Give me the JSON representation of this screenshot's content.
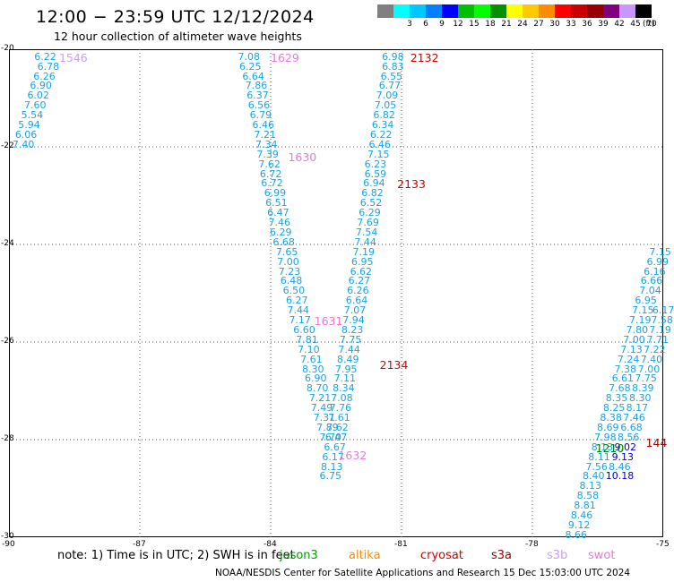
{
  "title": "12:00 − 23:59 UTC 12/12/2024",
  "subtitle": "12 hour collection of altimeter wave heights",
  "scale": {
    "unit": "(ft)",
    "levels": [
      {
        "label": "",
        "color": "#808080"
      },
      {
        "label": "3",
        "color": "#00ffff"
      },
      {
        "label": "6",
        "color": "#00c8ff"
      },
      {
        "label": "9",
        "color": "#0080ff"
      },
      {
        "label": "12",
        "color": "#0000ff"
      },
      {
        "label": "15",
        "color": "#00c000"
      },
      {
        "label": "18",
        "color": "#00ff00"
      },
      {
        "label": "21",
        "color": "#009000"
      },
      {
        "label": "24",
        "color": "#ffff00"
      },
      {
        "label": "27",
        "color": "#ffc800"
      },
      {
        "label": "30",
        "color": "#ff8c00"
      },
      {
        "label": "33",
        "color": "#ff0000"
      },
      {
        "label": "36",
        "color": "#c80000"
      },
      {
        "label": "39",
        "color": "#960000"
      },
      {
        "label": "42",
        "color": "#800080"
      },
      {
        "label": "45",
        "color": "#c896ff"
      },
      {
        "label": "70",
        "color": "#000000"
      }
    ]
  },
  "map": {
    "lon_ticks": [
      "-90",
      "-87",
      "-84",
      "-81",
      "-78",
      "-75"
    ],
    "lat_ticks": [
      "-20",
      "-22",
      "-24",
      "-26",
      "-28",
      "-30"
    ],
    "lon_range": [
      -90,
      -75
    ],
    "lat_range": [
      -30,
      -20
    ]
  },
  "tracks": [
    {
      "color": "#1aa3e0",
      "points": [
        {
          "lon": -89.42,
          "lat": -20.05,
          "v": "6.22"
        },
        {
          "lon": -89.35,
          "lat": -20.25,
          "v": "6.78"
        },
        {
          "lon": -89.44,
          "lat": -20.45,
          "v": "6.26"
        },
        {
          "lon": -89.52,
          "lat": -20.65,
          "v": "6.90"
        },
        {
          "lon": -89.58,
          "lat": -20.85,
          "v": "6.02"
        },
        {
          "lon": -89.65,
          "lat": -21.05,
          "v": "7.60"
        },
        {
          "lon": -89.72,
          "lat": -21.25,
          "v": "5.54"
        },
        {
          "lon": -89.79,
          "lat": -21.45,
          "v": "5.94"
        },
        {
          "lon": -89.86,
          "lat": -21.65,
          "v": "6.06"
        },
        {
          "lon": -89.92,
          "lat": -21.85,
          "v": "7.40"
        }
      ]
    },
    {
      "color": "#1aa3e0",
      "points": [
        {
          "lon": -84.75,
          "lat": -20.05,
          "v": "7.08"
        },
        {
          "lon": -84.72,
          "lat": -20.25,
          "v": "6.25"
        },
        {
          "lon": -84.65,
          "lat": -20.45,
          "v": "6.64"
        },
        {
          "lon": -84.58,
          "lat": -20.65,
          "v": "7.86"
        },
        {
          "lon": -84.55,
          "lat": -20.85,
          "v": "6.37"
        },
        {
          "lon": -84.52,
          "lat": -21.05,
          "v": "6.56"
        },
        {
          "lon": -84.48,
          "lat": -21.25,
          "v": "6.79"
        },
        {
          "lon": -84.42,
          "lat": -21.45,
          "v": "6.46"
        },
        {
          "lon": -84.38,
          "lat": -21.65,
          "v": "7.21"
        },
        {
          "lon": -84.35,
          "lat": -21.85,
          "v": "7.34"
        },
        {
          "lon": -84.32,
          "lat": -22.05,
          "v": "7.39"
        },
        {
          "lon": -84.28,
          "lat": -22.25,
          "v": "7.62"
        },
        {
          "lon": -84.25,
          "lat": -22.45,
          "v": "6.72"
        },
        {
          "lon": -84.22,
          "lat": -22.65,
          "v": "6.72"
        },
        {
          "lon": -84.15,
          "lat": -22.85,
          "v": "6.99"
        },
        {
          "lon": -84.12,
          "lat": -23.05,
          "v": "6.51"
        },
        {
          "lon": -84.08,
          "lat": -23.25,
          "v": "6.47"
        },
        {
          "lon": -84.05,
          "lat": -23.45,
          "v": "7.46"
        },
        {
          "lon": -84.02,
          "lat": -23.65,
          "v": "6.29"
        },
        {
          "lon": -83.95,
          "lat": -23.85,
          "v": "6.68"
        },
        {
          "lon": -83.88,
          "lat": -24.05,
          "v": "7.65"
        },
        {
          "lon": -83.85,
          "lat": -24.25,
          "v": "7.00"
        },
        {
          "lon": -83.82,
          "lat": -24.45,
          "v": "7.23"
        },
        {
          "lon": -83.78,
          "lat": -24.65,
          "v": "6.48"
        },
        {
          "lon": -83.72,
          "lat": -24.85,
          "v": "6.50"
        },
        {
          "lon": -83.65,
          "lat": -25.05,
          "v": "6.27"
        },
        {
          "lon": -83.62,
          "lat": -25.25,
          "v": "7.44"
        },
        {
          "lon": -83.58,
          "lat": -25.45,
          "v": "7.17"
        },
        {
          "lon": -83.48,
          "lat": -25.65,
          "v": "6.60"
        },
        {
          "lon": -83.42,
          "lat": -25.85,
          "v": "7.81"
        },
        {
          "lon": -83.38,
          "lat": -26.05,
          "v": "7.10"
        },
        {
          "lon": -83.32,
          "lat": -26.25,
          "v": "7.61"
        },
        {
          "lon": -83.28,
          "lat": -26.45,
          "v": "8.30"
        },
        {
          "lon": -83.22,
          "lat": -26.65,
          "v": "6.90"
        },
        {
          "lon": -83.18,
          "lat": -26.85,
          "v": "8.70"
        },
        {
          "lon": -83.12,
          "lat": -27.05,
          "v": "7.21"
        },
        {
          "lon": -83.08,
          "lat": -27.25,
          "v": "7.49"
        },
        {
          "lon": -83.02,
          "lat": -27.45,
          "v": "7.31"
        },
        {
          "lon": -82.95,
          "lat": -27.65,
          "v": "7.89"
        },
        {
          "lon": -82.88,
          "lat": -27.85,
          "v": "7.70"
        }
      ]
    },
    {
      "color": "#1aa3e0",
      "points": [
        {
          "lon": -81.45,
          "lat": -20.05,
          "v": "6.98"
        },
        {
          "lon": -81.45,
          "lat": -20.25,
          "v": "6.83"
        },
        {
          "lon": -81.48,
          "lat": -20.45,
          "v": "6.55"
        },
        {
          "lon": -81.52,
          "lat": -20.65,
          "v": "6.77"
        },
        {
          "lon": -81.58,
          "lat": -20.85,
          "v": "7.09"
        },
        {
          "lon": -81.62,
          "lat": -21.05,
          "v": "7.05"
        },
        {
          "lon": -81.65,
          "lat": -21.25,
          "v": "6.82"
        },
        {
          "lon": -81.68,
          "lat": -21.45,
          "v": "6.34"
        },
        {
          "lon": -81.72,
          "lat": -21.65,
          "v": "6.22"
        },
        {
          "lon": -81.75,
          "lat": -21.85,
          "v": "6.46"
        },
        {
          "lon": -81.78,
          "lat": -22.05,
          "v": "7.15"
        },
        {
          "lon": -81.85,
          "lat": -22.25,
          "v": "6.23"
        },
        {
          "lon": -81.85,
          "lat": -22.45,
          "v": "6.59"
        },
        {
          "lon": -81.88,
          "lat": -22.65,
          "v": "6.94"
        },
        {
          "lon": -81.92,
          "lat": -22.85,
          "v": "6.82"
        },
        {
          "lon": -81.95,
          "lat": -23.05,
          "v": "6.52"
        },
        {
          "lon": -81.98,
          "lat": -23.25,
          "v": "6.29"
        },
        {
          "lon": -82.02,
          "lat": -23.45,
          "v": "7.69"
        },
        {
          "lon": -82.05,
          "lat": -23.65,
          "v": "7.54"
        },
        {
          "lon": -82.08,
          "lat": -23.85,
          "v": "7.44"
        },
        {
          "lon": -82.12,
          "lat": -24.05,
          "v": "7.19"
        },
        {
          "lon": -82.15,
          "lat": -24.25,
          "v": "6.95"
        },
        {
          "lon": -82.18,
          "lat": -24.45,
          "v": "6.62"
        },
        {
          "lon": -82.22,
          "lat": -24.65,
          "v": "6.27"
        },
        {
          "lon": -82.25,
          "lat": -24.85,
          "v": "6.26"
        },
        {
          "lon": -82.28,
          "lat": -25.05,
          "v": "6.64"
        },
        {
          "lon": -82.32,
          "lat": -25.25,
          "v": "7.07"
        },
        {
          "lon": -82.35,
          "lat": -25.45,
          "v": "7.94"
        },
        {
          "lon": -82.38,
          "lat": -25.65,
          "v": "8.23"
        },
        {
          "lon": -82.42,
          "lat": -25.85,
          "v": "7.75"
        },
        {
          "lon": -82.45,
          "lat": -26.05,
          "v": "7.44"
        },
        {
          "lon": -82.48,
          "lat": -26.25,
          "v": "8.49"
        },
        {
          "lon": -82.52,
          "lat": -26.45,
          "v": "7.95"
        },
        {
          "lon": -82.55,
          "lat": -26.65,
          "v": "7.11"
        },
        {
          "lon": -82.58,
          "lat": -26.85,
          "v": "8.34"
        },
        {
          "lon": -82.62,
          "lat": -27.05,
          "v": "7.08"
        },
        {
          "lon": -82.65,
          "lat": -27.25,
          "v": "7.76"
        },
        {
          "lon": -82.68,
          "lat": -27.45,
          "v": "7.61"
        },
        {
          "lon": -82.72,
          "lat": -27.65,
          "v": "7.62"
        },
        {
          "lon": -82.75,
          "lat": -27.85,
          "v": "6.47"
        },
        {
          "lon": -82.78,
          "lat": -28.05,
          "v": "6.67"
        },
        {
          "lon": -82.82,
          "lat": -28.25,
          "v": "6.17"
        },
        {
          "lon": -82.85,
          "lat": -28.45,
          "v": "8.13"
        },
        {
          "lon": -82.88,
          "lat": -28.65,
          "v": "6.75"
        }
      ]
    },
    {
      "color": "#1aa3e0",
      "points": [
        {
          "lon": -75.32,
          "lat": -24.05,
          "v": "7.15"
        },
        {
          "lon": -75.38,
          "lat": -24.25,
          "v": "6.99"
        },
        {
          "lon": -75.45,
          "lat": -24.45,
          "v": "6.16"
        },
        {
          "lon": -75.52,
          "lat": -24.65,
          "v": "6.66"
        },
        {
          "lon": -75.55,
          "lat": -24.85,
          "v": "7.04"
        },
        {
          "lon": -75.65,
          "lat": -25.05,
          "v": "6.95"
        },
        {
          "lon": -75.72,
          "lat": -25.25,
          "v": "7.15"
        },
        {
          "lon": -75.78,
          "lat": -25.45,
          "v": "7.19"
        },
        {
          "lon": -75.85,
          "lat": -25.65,
          "v": "7.80"
        },
        {
          "lon": -75.92,
          "lat": -25.85,
          "v": "7.00"
        },
        {
          "lon": -75.98,
          "lat": -26.05,
          "v": "7.13"
        },
        {
          "lon": -76.05,
          "lat": -26.25,
          "v": "7.24"
        },
        {
          "lon": -76.12,
          "lat": -26.45,
          "v": "7.38"
        },
        {
          "lon": -76.18,
          "lat": -26.65,
          "v": "6.61"
        },
        {
          "lon": -76.25,
          "lat": -26.85,
          "v": "7.68"
        },
        {
          "lon": -76.32,
          "lat": -27.05,
          "v": "8.35"
        },
        {
          "lon": -76.38,
          "lat": -27.25,
          "v": "8.25"
        },
        {
          "lon": -76.45,
          "lat": -27.45,
          "v": "8.38"
        },
        {
          "lon": -76.52,
          "lat": -27.65,
          "v": "8.69"
        },
        {
          "lon": -76.58,
          "lat": -27.85,
          "v": "7.98"
        },
        {
          "lon": -76.65,
          "lat": -28.05,
          "v": "8.13"
        },
        {
          "lon": -76.72,
          "lat": -28.25,
          "v": "8.11"
        },
        {
          "lon": -76.78,
          "lat": -28.45,
          "v": "7.56"
        },
        {
          "lon": -76.85,
          "lat": -28.65,
          "v": "8.40"
        },
        {
          "lon": -76.92,
          "lat": -28.85,
          "v": "8.13"
        },
        {
          "lon": -76.98,
          "lat": -29.05,
          "v": "8.58"
        },
        {
          "lon": -77.05,
          "lat": -29.25,
          "v": "8.81"
        },
        {
          "lon": -77.12,
          "lat": -29.45,
          "v": "8.46"
        },
        {
          "lon": -77.18,
          "lat": -29.65,
          "v": "9.12"
        },
        {
          "lon": -77.25,
          "lat": -29.85,
          "v": "8.66"
        }
      ]
    },
    {
      "color": "#1aa3e0",
      "points": [
        {
          "lon": -75.25,
          "lat": -25.25,
          "v": "6.17"
        },
        {
          "lon": -75.28,
          "lat": -25.45,
          "v": "7.58"
        },
        {
          "lon": -75.32,
          "lat": -25.65,
          "v": "7.19"
        },
        {
          "lon": -75.38,
          "lat": -25.85,
          "v": "7.71"
        },
        {
          "lon": -75.45,
          "lat": -26.05,
          "v": "7.22"
        },
        {
          "lon": -75.52,
          "lat": -26.25,
          "v": "7.40"
        },
        {
          "lon": -75.58,
          "lat": -26.45,
          "v": "7.00"
        },
        {
          "lon": -75.65,
          "lat": -26.65,
          "v": "7.75"
        },
        {
          "lon": -75.72,
          "lat": -26.85,
          "v": "8.39"
        },
        {
          "lon": -75.78,
          "lat": -27.05,
          "v": "8.30"
        },
        {
          "lon": -75.85,
          "lat": -27.25,
          "v": "8.17"
        },
        {
          "lon": -75.92,
          "lat": -27.45,
          "v": "7.46"
        },
        {
          "lon": -75.98,
          "lat": -27.65,
          "v": "6.68"
        },
        {
          "lon": -76.05,
          "lat": -27.85,
          "v": "8.56"
        },
        {
          "lon": -76.12,
          "lat": -28.05,
          "v": "9.02",
          "c": "#0000c0"
        },
        {
          "lon": -76.18,
          "lat": -28.25,
          "v": "9.13",
          "c": "#0000c0"
        },
        {
          "lon": -76.25,
          "lat": -28.45,
          "v": "8.46"
        },
        {
          "lon": -76.32,
          "lat": -28.65,
          "v": "10.18",
          "c": "#0000c0"
        }
      ]
    }
  ],
  "time_labels": [
    {
      "text": "1546",
      "lon": -88.85,
      "lat": -20.05,
      "color": "#c8a0f0"
    },
    {
      "text": "1629",
      "lon": -84.0,
      "lat": -20.05,
      "color": "#e878d8"
    },
    {
      "text": "2132",
      "lon": -80.8,
      "lat": -20.05,
      "color": "#d00000"
    },
    {
      "text": "1630",
      "lon": -83.6,
      "lat": -22.1,
      "color": "#e878d8"
    },
    {
      "text": "2133",
      "lon": -81.1,
      "lat": -22.65,
      "color": "#d00000"
    },
    {
      "text": "1631",
      "lon": -83.0,
      "lat": -25.45,
      "color": "#e878d8"
    },
    {
      "text": "2134",
      "lon": -81.5,
      "lat": -26.35,
      "color": "#d00000"
    },
    {
      "text": "1632",
      "lon": -82.45,
      "lat": -28.2,
      "color": "#e878d8"
    },
    {
      "text": "1210",
      "lon": -76.55,
      "lat": -28.05,
      "color": "#008000"
    },
    {
      "text": "144",
      "lon": -75.4,
      "lat": -27.95,
      "color": "#a00000"
    }
  ],
  "note_text": "note:  1) Time is in UTC; 2) SWH is in feet",
  "satellites": [
    {
      "name": "jason3",
      "color": "#00a000"
    },
    {
      "name": "altika",
      "color": "#ff8c00"
    },
    {
      "name": "cryosat",
      "color": "#d00000"
    },
    {
      "name": "s3a",
      "color": "#a00000"
    },
    {
      "name": "s3b",
      "color": "#c8a0f0"
    },
    {
      "name": "swot",
      "color": "#e878d8"
    }
  ],
  "credit": "NOAA/NESDIS Center for Satellite Applications and Research    15 Dec 15:03:00 UTC 2024"
}
